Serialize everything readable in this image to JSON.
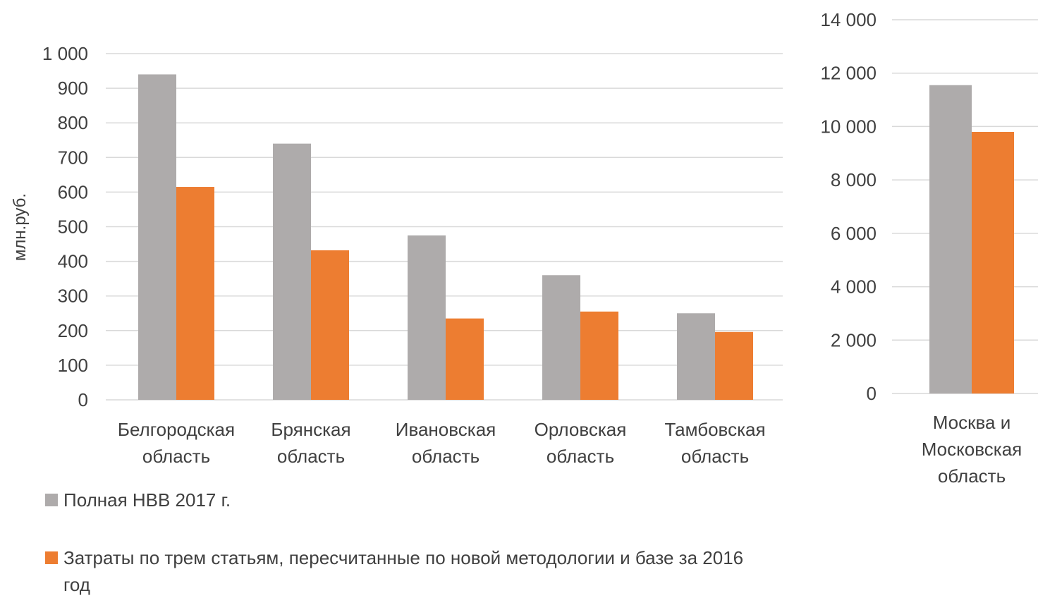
{
  "chart_data": [
    {
      "type": "bar",
      "ylabel": "млн.руб.",
      "ylim": [
        0,
        1000
      ],
      "yticks": [
        "0",
        "100",
        "200",
        "300",
        "400",
        "500",
        "600",
        "700",
        "800",
        "900",
        "1 000"
      ],
      "categories": [
        [
          "Белгородская",
          "область"
        ],
        [
          "Брянская",
          "область"
        ],
        [
          "Ивановская",
          "область"
        ],
        [
          "Орловская",
          "область"
        ],
        [
          "Тамбовская",
          "область"
        ]
      ],
      "series": [
        {
          "name": "Полная НВВ 2017 г.",
          "color": "#aeabab",
          "values": [
            940,
            740,
            475,
            360,
            250
          ]
        },
        {
          "name": "Затраты по трем статьям, пересчитанные по новой методологии и базе за 2016 год",
          "color": "#ed7d31",
          "values": [
            615,
            432,
            235,
            255,
            196
          ]
        }
      ],
      "grid": true
    },
    {
      "type": "bar",
      "ylim": [
        0,
        14000
      ],
      "yticks": [
        "0",
        "2 000",
        "4 000",
        "6 000",
        "8 000",
        "10 000",
        "12 000",
        "14 000"
      ],
      "categories": [
        [
          "Москва и",
          "Московская",
          "область"
        ]
      ],
      "series": [
        {
          "name": "Полная НВВ 2017 г.",
          "color": "#aeabab",
          "values": [
            11550
          ]
        },
        {
          "name": "Затраты по трем статьям, пересчитанные по новой методологии и базе за 2016 год",
          "color": "#ed7d31",
          "values": [
            9800
          ]
        }
      ],
      "grid": true
    }
  ],
  "legend": {
    "items": [
      {
        "label": "Полная НВВ 2017 г.",
        "color": "#aeabab"
      },
      {
        "label": "Затраты по трем статьям, пересчитанные по новой методологии и базе за 2016 год",
        "color": "#ed7d31"
      }
    ],
    "placement": "bottom-left"
  }
}
